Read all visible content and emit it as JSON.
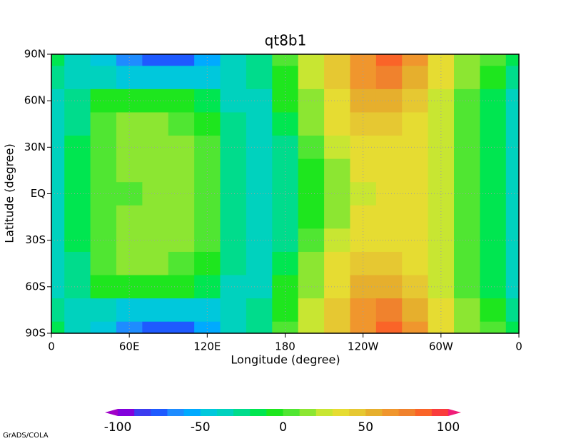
{
  "chart_data": {
    "type": "contour",
    "title": "qt8b1",
    "xlabel": "Longitude (degree)",
    "ylabel": "Latitude (degree)",
    "footnote": "GrADS/COLA",
    "xlim": [
      0,
      360
    ],
    "ylim": [
      -90,
      90
    ],
    "xticks": [
      0,
      {
        "value": 60,
        "label": "60E"
      },
      {
        "value": 120,
        "label": "120E"
      },
      180,
      {
        "value": 240,
        "label": "120W"
      },
      {
        "value": 300,
        "label": "60W"
      },
      {
        "value": 360,
        "label": "0"
      }
    ],
    "yticks": [
      {
        "value": -90,
        "label": "90S"
      },
      {
        "value": -60,
        "label": "60S"
      },
      {
        "value": -30,
        "label": "30S"
      },
      {
        "value": 0,
        "label": "EQ"
      },
      {
        "value": 30,
        "label": "30N"
      },
      {
        "value": 60,
        "label": "60N"
      },
      {
        "value": 90,
        "label": "90N"
      }
    ],
    "grid": true,
    "x": [
      0,
      20,
      40,
      60,
      80,
      100,
      120,
      140,
      160,
      180,
      200,
      220,
      240,
      260,
      280,
      300,
      320,
      340,
      360
    ],
    "y": [
      90,
      75,
      60,
      45,
      30,
      15,
      0,
      -15,
      -30,
      -45,
      -60,
      -75,
      -90
    ],
    "z": [
      [
        -20,
        -35,
        -50,
        -70,
        -80,
        -75,
        -55,
        -40,
        -30,
        0,
        25,
        45,
        65,
        80,
        60,
        35,
        15,
        0,
        -20
      ],
      [
        -30,
        -40,
        -40,
        -45,
        -50,
        -50,
        -45,
        -40,
        -30,
        -5,
        20,
        40,
        60,
        70,
        55,
        30,
        10,
        -10,
        -30
      ],
      [
        -35,
        -30,
        -10,
        -5,
        -5,
        -5,
        -15,
        -40,
        -35,
        -10,
        15,
        35,
        50,
        50,
        40,
        25,
        5,
        -15,
        -35
      ],
      [
        -40,
        -25,
        0,
        10,
        10,
        5,
        -5,
        -30,
        -35,
        -15,
        10,
        30,
        40,
        40,
        35,
        25,
        5,
        -20,
        -40
      ],
      [
        -40,
        -20,
        0,
        10,
        15,
        10,
        0,
        -25,
        -35,
        -25,
        0,
        20,
        35,
        35,
        35,
        25,
        5,
        -20,
        -40
      ],
      [
        -35,
        -20,
        0,
        10,
        15,
        15,
        0,
        -25,
        -35,
        -30,
        -5,
        15,
        30,
        35,
        35,
        25,
        5,
        -20,
        -35
      ],
      [
        -35,
        -20,
        0,
        5,
        15,
        15,
        0,
        -25,
        -35,
        -30,
        -10,
        10,
        25,
        35,
        35,
        25,
        5,
        -20,
        -35
      ],
      [
        -35,
        -20,
        0,
        10,
        15,
        15,
        0,
        -25,
        -35,
        -30,
        -5,
        15,
        30,
        35,
        35,
        25,
        5,
        -20,
        -35
      ],
      [
        -40,
        -20,
        0,
        10,
        15,
        10,
        0,
        -25,
        -35,
        -25,
        0,
        20,
        35,
        35,
        35,
        25,
        5,
        -20,
        -40
      ],
      [
        -40,
        -25,
        0,
        10,
        10,
        5,
        -5,
        -30,
        -40,
        -15,
        10,
        30,
        40,
        40,
        35,
        25,
        5,
        -20,
        -40
      ],
      [
        -35,
        -30,
        -10,
        -5,
        -5,
        -5,
        -15,
        -40,
        -40,
        -10,
        15,
        35,
        50,
        55,
        45,
        25,
        5,
        -15,
        -35
      ],
      [
        -30,
        -40,
        -40,
        -45,
        -50,
        -50,
        -45,
        -40,
        -30,
        -5,
        20,
        40,
        60,
        70,
        55,
        30,
        10,
        -10,
        -30
      ],
      [
        -20,
        -35,
        -50,
        -70,
        -80,
        -75,
        -55,
        -40,
        -30,
        0,
        25,
        45,
        65,
        80,
        60,
        35,
        15,
        0,
        -20
      ]
    ],
    "colorbar": {
      "levels": [
        -100,
        -90,
        -80,
        -70,
        -60,
        -50,
        -40,
        -30,
        -20,
        -10,
        0,
        10,
        20,
        30,
        40,
        50,
        60,
        70,
        80,
        90,
        100
      ],
      "colors": [
        "#a000c8",
        "#8200dc",
        "#3c3cf0",
        "#1e5aff",
        "#1e8cff",
        "#00aaff",
        "#00c8dc",
        "#00d2be",
        "#00dc8c",
        "#00e650",
        "#1ee61e",
        "#50e632",
        "#8ce632",
        "#c8e632",
        "#e6dc32",
        "#e6c832",
        "#e6af2d",
        "#f0962d",
        "#f0822d",
        "#fa6428",
        "#fa3c3c",
        "#f01e78"
      ],
      "labels": [
        -100,
        -50,
        0,
        50,
        100
      ]
    }
  }
}
